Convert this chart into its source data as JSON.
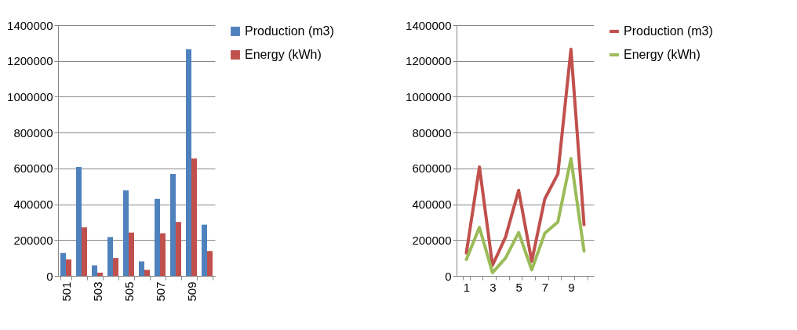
{
  "chart_data": [
    {
      "type": "bar",
      "categories": [
        "501",
        null,
        "503",
        null,
        "505",
        null,
        "507",
        null,
        "509",
        null
      ],
      "series": [
        {
          "name": "Production (m3)",
          "color": "#4f81bd",
          "values": [
            128000,
            608000,
            59000,
            217000,
            478000,
            81000,
            430000,
            569000,
            1265000,
            286000
          ]
        },
        {
          "name": "Energy (kWh)",
          "color": "#c0504d",
          "values": [
            92000,
            271000,
            18000,
            100000,
            242000,
            34000,
            238000,
            301000,
            655000,
            139000
          ]
        }
      ],
      "ylim": [
        0,
        1400000
      ],
      "yticks": [
        0,
        200000,
        400000,
        600000,
        800000,
        1000000,
        1200000,
        1400000
      ],
      "grid": "y",
      "legend": "right"
    },
    {
      "type": "line",
      "categories": [
        "1",
        null,
        "3",
        null,
        "5",
        null,
        "7",
        null,
        "9",
        null
      ],
      "series": [
        {
          "name": "Production (m3)",
          "color": "#c0504d",
          "values": [
            128000,
            608000,
            59000,
            217000,
            478000,
            81000,
            430000,
            569000,
            1265000,
            286000
          ]
        },
        {
          "name": "Energy (kWh)",
          "color": "#9bbb59",
          "values": [
            92000,
            271000,
            18000,
            100000,
            242000,
            34000,
            238000,
            301000,
            655000,
            139000
          ]
        }
      ],
      "ylim": [
        0,
        1400000
      ],
      "yticks": [
        0,
        200000,
        400000,
        600000,
        800000,
        1000000,
        1200000,
        1400000
      ],
      "grid": "y",
      "legend": "right"
    }
  ]
}
